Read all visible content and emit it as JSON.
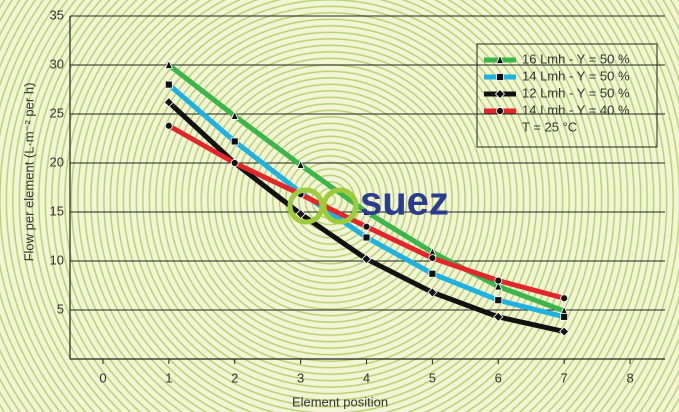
{
  "chart_data": {
    "type": "line",
    "x_label": "Element position",
    "y_label": "Flow per element (L·m⁻² per h)",
    "x": [
      1,
      2,
      3,
      4,
      5,
      6,
      7
    ],
    "xlim": [
      -0.5,
      8.5
    ],
    "xticks": [
      0,
      1,
      2,
      3,
      4,
      5,
      6,
      7,
      8
    ],
    "ylim": [
      0,
      35
    ],
    "yticks": [
      5,
      10,
      15,
      20,
      25,
      30,
      35
    ],
    "grid": true,
    "series": [
      {
        "name": "16 Lmh - Y = 50 %",
        "color": "#3cb54a",
        "marker": "triangle",
        "values": [
          30,
          24.8,
          19.8,
          15,
          10.9,
          7.4,
          4.9
        ]
      },
      {
        "name": "14 Lmh - Y = 50 %",
        "color": "#1fb1e0",
        "marker": "square",
        "values": [
          28,
          22.2,
          17,
          12.4,
          8.7,
          6,
          4.3
        ]
      },
      {
        "name": "12 Lmh - Y = 50 %",
        "color": "#111111",
        "marker": "diamond",
        "values": [
          26.2,
          20,
          14.8,
          10.2,
          6.8,
          4.3,
          2.8
        ]
      },
      {
        "name": "14 Lmh - Y = 40 %",
        "color": "#e3262b",
        "marker": "circle",
        "values": [
          23.8,
          20,
          16.8,
          13.5,
          10.3,
          8,
          6.2
        ]
      }
    ],
    "legend_note": "T = 25 °C",
    "legend_position": "upper right",
    "logo": "suez"
  }
}
